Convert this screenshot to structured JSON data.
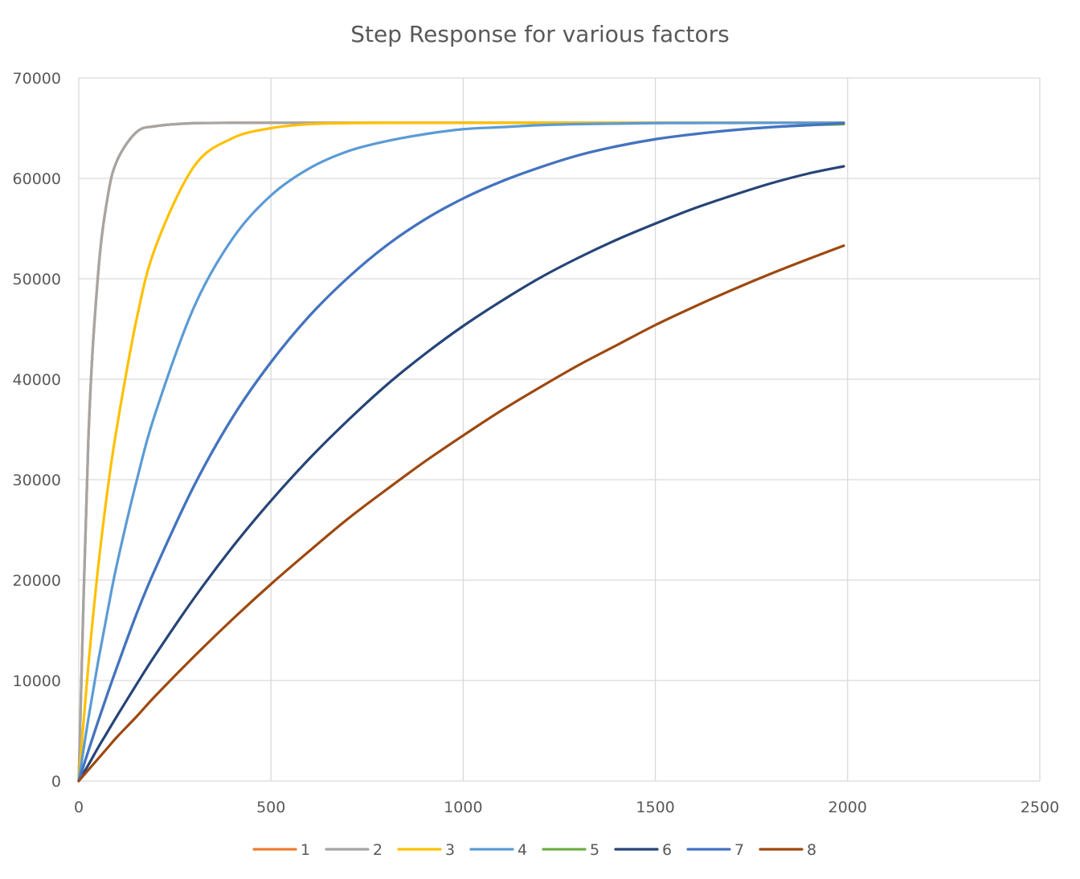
{
  "chart_data": {
    "type": "line",
    "title": "Step Response for various factors",
    "xlabel": "",
    "ylabel": "",
    "xlim": [
      0,
      2500
    ],
    "ylim": [
      0,
      70000
    ],
    "x_ticks": [
      "0",
      "500",
      "1000",
      "1500",
      "2000",
      "2500"
    ],
    "y_ticks": [
      "0",
      "10000",
      "20000",
      "30000",
      "40000",
      "50000",
      "60000",
      "70000"
    ],
    "grid": true,
    "legend_position": "bottom",
    "x": [
      0,
      25,
      50,
      75,
      100,
      150,
      200,
      300,
      400,
      500,
      600,
      700,
      800,
      900,
      1000,
      1100,
      1200,
      1300,
      1400,
      1500,
      1600,
      1700,
      1800,
      1900,
      1990
    ],
    "series": [
      {
        "name": "1",
        "color": "#ED7D31",
        "values": [
          0,
          34000,
          50300,
          58100,
          61800,
          64600,
          65200,
          65500,
          65530,
          65535,
          65535,
          65535,
          65535,
          65535,
          65535,
          65535,
          65535,
          65535,
          65535,
          65535,
          65535,
          65535,
          65535,
          65535,
          65535
        ]
      },
      {
        "name": "2",
        "color": "#A5A5A5",
        "values": [
          0,
          34000,
          50300,
          58100,
          61800,
          64600,
          65200,
          65500,
          65530,
          65535,
          65535,
          65535,
          65535,
          65535,
          65535,
          65535,
          65535,
          65535,
          65535,
          65535,
          65535,
          65535,
          65535,
          65535,
          65535
        ]
      },
      {
        "name": "3",
        "color": "#FFC000",
        "values": [
          0,
          11500,
          21100,
          29000,
          35400,
          45900,
          53200,
          61200,
          64000,
          65000,
          65400,
          65500,
          65530,
          65535,
          65535,
          65535,
          65535,
          65535,
          65535,
          65535,
          65535,
          65535,
          65535,
          65535,
          65535
        ]
      },
      {
        "name": "4",
        "color": "#5B9BD5",
        "values": [
          0,
          6200,
          11800,
          16900,
          21700,
          29800,
          36700,
          47200,
          54000,
          58300,
          61000,
          62700,
          63700,
          64400,
          64900,
          65100,
          65300,
          65400,
          65450,
          65500,
          65510,
          65520,
          65530,
          65535,
          65535
        ]
      },
      {
        "name": "5",
        "color": "#70AD47",
        "values": [
          0,
          3000,
          5900,
          8700,
          11400,
          16600,
          21200,
          29400,
          36200,
          41700,
          46300,
          50100,
          53300,
          55900,
          58000,
          59700,
          61100,
          62300,
          63200,
          63900,
          64400,
          64800,
          65100,
          65300,
          65400
        ]
      },
      {
        "name": "6",
        "color": "#264478",
        "values": [
          0,
          1600,
          3300,
          4900,
          6500,
          9600,
          12600,
          18200,
          23300,
          27900,
          32100,
          35900,
          39400,
          42500,
          45300,
          47800,
          50100,
          52100,
          53900,
          55500,
          57000,
          58300,
          59500,
          60500,
          61200
        ]
      },
      {
        "name": "7",
        "color": "#4472C4",
        "values": [
          0,
          3000,
          5900,
          8700,
          11400,
          16600,
          21200,
          29400,
          36200,
          41700,
          46300,
          50100,
          53300,
          55900,
          58000,
          59700,
          61100,
          62300,
          63200,
          63900,
          64400,
          64800,
          65100,
          65300,
          65500
        ]
      },
      {
        "name": "8",
        "color": "#9E480E",
        "values": [
          0,
          1100,
          2200,
          3300,
          4400,
          6400,
          8500,
          12400,
          16100,
          19600,
          22900,
          26100,
          29000,
          31800,
          34400,
          36900,
          39200,
          41400,
          43400,
          45400,
          47200,
          48900,
          50500,
          52000,
          53300
        ]
      }
    ]
  }
}
